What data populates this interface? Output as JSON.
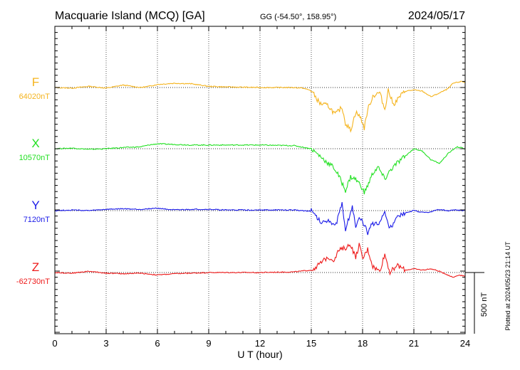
{
  "header": {
    "station": "Macquarie Island (MCQ)  [GA]",
    "coords": "GG (-54.50°, 158.95°)",
    "date": "2024/05/17"
  },
  "footnote": "Plotted at 2024/05/23 21:14 UT",
  "chart_data": {
    "type": "line",
    "title": "Macquarie Island (MCQ)  [GA]",
    "xlabel": "U T (hour)",
    "ylabel": "",
    "xlim": [
      0,
      24
    ],
    "xticks": [
      0,
      3,
      6,
      9,
      12,
      15,
      18,
      21,
      24
    ],
    "grid": true,
    "scale_bar": {
      "label": "500 nT",
      "value": 500
    },
    "y_offset_per_panel_nT": 500,
    "series": [
      {
        "name": "F",
        "baseline_label": "64020nT",
        "baseline": 64020,
        "color": "#f5b41e",
        "points": [
          [
            0,
            0
          ],
          [
            1,
            -5
          ],
          [
            2,
            10
          ],
          [
            3,
            -5
          ],
          [
            4,
            20
          ],
          [
            5,
            0
          ],
          [
            5.5,
            10
          ],
          [
            6,
            25
          ],
          [
            7,
            35
          ],
          [
            8,
            30
          ],
          [
            9,
            10
          ],
          [
            10,
            5
          ],
          [
            12,
            0
          ],
          [
            14,
            0
          ],
          [
            14.5,
            -5
          ],
          [
            15,
            -25
          ],
          [
            15.5,
            -130
          ],
          [
            16,
            -150
          ],
          [
            16.4,
            -220
          ],
          [
            16.8,
            -160
          ],
          [
            17,
            -290
          ],
          [
            17.3,
            -350
          ],
          [
            17.6,
            -200
          ],
          [
            17.9,
            -250
          ],
          [
            18.1,
            -330
          ],
          [
            18.3,
            -180
          ],
          [
            18.6,
            -70
          ],
          [
            19,
            -40
          ],
          [
            19.3,
            -180
          ],
          [
            19.5,
            -20
          ],
          [
            19.8,
            -140
          ],
          [
            20.2,
            -70
          ],
          [
            20.5,
            -30
          ],
          [
            21,
            -20
          ],
          [
            21.5,
            -30
          ],
          [
            22,
            -75
          ],
          [
            22.5,
            -45
          ],
          [
            23,
            -10
          ],
          [
            23.3,
            35
          ],
          [
            23.8,
            50
          ],
          [
            24,
            40
          ]
        ]
      },
      {
        "name": "X",
        "baseline_label": "10570nT",
        "baseline": 10570,
        "color": "#22e022",
        "points": [
          [
            0,
            0
          ],
          [
            1,
            5
          ],
          [
            2,
            -5
          ],
          [
            3,
            0
          ],
          [
            4,
            10
          ],
          [
            5,
            15
          ],
          [
            5.5,
            30
          ],
          [
            6,
            40
          ],
          [
            7,
            35
          ],
          [
            8,
            30
          ],
          [
            9,
            30
          ],
          [
            10,
            30
          ],
          [
            12,
            30
          ],
          [
            14,
            25
          ],
          [
            15,
            0
          ],
          [
            15.5,
            -60
          ],
          [
            16,
            -120
          ],
          [
            16.3,
            -150
          ],
          [
            16.6,
            -220
          ],
          [
            17,
            -340
          ],
          [
            17.3,
            -230
          ],
          [
            17.6,
            -250
          ],
          [
            17.9,
            -300
          ],
          [
            18.1,
            -360
          ],
          [
            18.3,
            -300
          ],
          [
            18.6,
            -200
          ],
          [
            18.9,
            -150
          ],
          [
            19.3,
            -250
          ],
          [
            19.6,
            -180
          ],
          [
            20,
            -120
          ],
          [
            20.5,
            -60
          ],
          [
            21,
            0
          ],
          [
            21.5,
            -20
          ],
          [
            22,
            -90
          ],
          [
            22.5,
            -120
          ],
          [
            23,
            -40
          ],
          [
            23.5,
            15
          ],
          [
            24,
            0
          ]
        ]
      },
      {
        "name": "Y",
        "baseline_label": "7120nT",
        "baseline": 7120,
        "color": "#1a1ae8",
        "points": [
          [
            0,
            0
          ],
          [
            1,
            5
          ],
          [
            2,
            0
          ],
          [
            3,
            10
          ],
          [
            4,
            15
          ],
          [
            5,
            10
          ],
          [
            6,
            20
          ],
          [
            7,
            5
          ],
          [
            8,
            10
          ],
          [
            9,
            10
          ],
          [
            10,
            5
          ],
          [
            12,
            5
          ],
          [
            14,
            5
          ],
          [
            15,
            -5
          ],
          [
            15.3,
            -50
          ],
          [
            15.6,
            -100
          ],
          [
            16,
            -70
          ],
          [
            16.4,
            -130
          ],
          [
            16.8,
            50
          ],
          [
            17,
            -150
          ],
          [
            17.2,
            -60
          ],
          [
            17.4,
            40
          ],
          [
            17.6,
            -140
          ],
          [
            17.8,
            -70
          ],
          [
            18,
            -90
          ],
          [
            18.3,
            -180
          ],
          [
            18.6,
            -100
          ],
          [
            18.9,
            -120
          ],
          [
            19.3,
            -10
          ],
          [
            19.6,
            -150
          ],
          [
            20,
            -60
          ],
          [
            20.5,
            -20
          ],
          [
            21,
            0
          ],
          [
            21.5,
            -15
          ],
          [
            22,
            -10
          ],
          [
            22.5,
            10
          ],
          [
            23,
            0
          ],
          [
            23.5,
            5
          ],
          [
            24,
            0
          ]
        ]
      },
      {
        "name": "Z",
        "baseline_label": "-62730nT",
        "baseline": -62730,
        "color": "#ee1a1a",
        "points": [
          [
            0,
            0
          ],
          [
            1,
            -5
          ],
          [
            2,
            10
          ],
          [
            3,
            -5
          ],
          [
            4,
            -10
          ],
          [
            5,
            -5
          ],
          [
            6,
            -20
          ],
          [
            7,
            -10
          ],
          [
            8,
            -5
          ],
          [
            9,
            0
          ],
          [
            10,
            0
          ],
          [
            12,
            0
          ],
          [
            14,
            5
          ],
          [
            15,
            20
          ],
          [
            15.5,
            70
          ],
          [
            16,
            130
          ],
          [
            16.3,
            100
          ],
          [
            16.6,
            180
          ],
          [
            17,
            200
          ],
          [
            17.3,
            230
          ],
          [
            17.6,
            120
          ],
          [
            17.8,
            230
          ],
          [
            18,
            110
          ],
          [
            18.3,
            190
          ],
          [
            18.6,
            50
          ],
          [
            19,
            10
          ],
          [
            19.3,
            150
          ],
          [
            19.6,
            0
          ],
          [
            20,
            60
          ],
          [
            20.5,
            20
          ],
          [
            21,
            30
          ],
          [
            21.5,
            20
          ],
          [
            22,
            30
          ],
          [
            22.5,
            10
          ],
          [
            23,
            -20
          ],
          [
            23.3,
            -40
          ],
          [
            23.6,
            -20
          ],
          [
            24,
            -30
          ]
        ]
      }
    ]
  }
}
